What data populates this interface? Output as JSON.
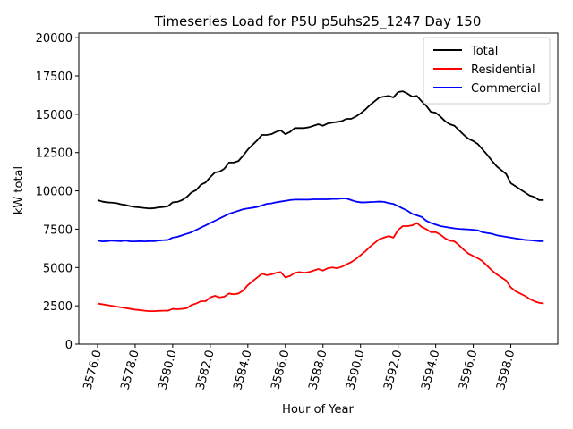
{
  "chart_data": {
    "type": "line",
    "title": "Timeseries Load for P5U p5uhs25_1247  Day 150",
    "xlabel": "Hour of Year",
    "ylabel": "kW total",
    "xlim": [
      3575.0,
      3600.5
    ],
    "ylim": [
      0,
      20300
    ],
    "xticks": [
      3576,
      3578,
      3580,
      3582,
      3584,
      3586,
      3588,
      3590,
      3592,
      3594,
      3596,
      3598
    ],
    "xtick_labels": [
      "3576.0",
      "3578.0",
      "3580.0",
      "3582.0",
      "3584.0",
      "3586.0",
      "3588.0",
      "3590.0",
      "3592.0",
      "3594.0",
      "3596.0",
      "3598.0"
    ],
    "yticks": [
      0,
      2500,
      5000,
      7500,
      10000,
      12500,
      15000,
      17500,
      20000
    ],
    "ytick_labels": [
      "0",
      "2500",
      "5000",
      "7500",
      "10000",
      "12500",
      "15000",
      "17500",
      "20000"
    ],
    "legend_position": "top-right",
    "x": [
      3576.0,
      3576.25,
      3576.5,
      3576.75,
      3577.0,
      3577.25,
      3577.5,
      3577.75,
      3578.0,
      3578.25,
      3578.5,
      3578.75,
      3579.0,
      3579.25,
      3579.5,
      3579.75,
      3580.0,
      3580.25,
      3580.5,
      3580.75,
      3581.0,
      3581.25,
      3581.5,
      3581.75,
      3582.0,
      3582.25,
      3582.5,
      3582.75,
      3583.0,
      3583.25,
      3583.5,
      3583.75,
      3584.0,
      3584.25,
      3584.5,
      3584.75,
      3585.0,
      3585.25,
      3585.5,
      3585.75,
      3586.0,
      3586.25,
      3586.5,
      3586.75,
      3587.0,
      3587.25,
      3587.5,
      3587.75,
      3588.0,
      3588.25,
      3588.5,
      3588.75,
      3589.0,
      3589.25,
      3589.5,
      3589.75,
      3590.0,
      3590.25,
      3590.5,
      3590.75,
      3591.0,
      3591.25,
      3591.5,
      3591.75,
      3592.0,
      3592.25,
      3592.5,
      3592.75,
      3593.0,
      3593.25,
      3593.5,
      3593.75,
      3594.0,
      3594.25,
      3594.5,
      3594.75,
      3595.0,
      3595.25,
      3595.5,
      3595.75,
      3596.0,
      3596.25,
      3596.5,
      3596.75,
      3597.0,
      3597.25,
      3597.5,
      3597.75,
      3598.0,
      3598.25,
      3598.5,
      3598.75,
      3599.0,
      3599.25,
      3599.5,
      3599.75
    ],
    "series": [
      {
        "name": "Total",
        "color": "#000000",
        "values": [
          9400,
          9300,
          9250,
          9230,
          9200,
          9120,
          9080,
          9000,
          8950,
          8920,
          8880,
          8850,
          8870,
          8920,
          8950,
          9000,
          9250,
          9280,
          9400,
          9600,
          9900,
          10050,
          10400,
          10550,
          10900,
          11200,
          11250,
          11450,
          11850,
          11850,
          11950,
          12300,
          12700,
          13000,
          13300,
          13650,
          13650,
          13700,
          13850,
          13950,
          13700,
          13850,
          14100,
          14100,
          14100,
          14150,
          14250,
          14350,
          14250,
          14400,
          14450,
          14500,
          14550,
          14700,
          14700,
          14850,
          15050,
          15300,
          15600,
          15850,
          16100,
          16150,
          16200,
          16100,
          16450,
          16500,
          16350,
          16150,
          16200,
          15850,
          15550,
          15150,
          15100,
          14850,
          14550,
          14350,
          14250,
          13950,
          13650,
          13400,
          13250,
          13050,
          12700,
          12350,
          11950,
          11600,
          11350,
          11100,
          10500,
          10300,
          10100,
          9900,
          9700,
          9600,
          9400,
          9400
        ]
      },
      {
        "name": "Residential",
        "color": "#ff0000",
        "values": [
          2650,
          2600,
          2550,
          2500,
          2450,
          2400,
          2350,
          2300,
          2250,
          2220,
          2180,
          2150,
          2150,
          2170,
          2180,
          2180,
          2300,
          2280,
          2300,
          2350,
          2550,
          2650,
          2800,
          2800,
          3050,
          3150,
          3050,
          3100,
          3300,
          3250,
          3300,
          3500,
          3850,
          4100,
          4350,
          4600,
          4500,
          4550,
          4650,
          4700,
          4350,
          4450,
          4650,
          4700,
          4650,
          4700,
          4800,
          4900,
          4800,
          4950,
          5000,
          4950,
          5050,
          5200,
          5350,
          5550,
          5800,
          6050,
          6350,
          6600,
          6850,
          6950,
          7050,
          6950,
          7450,
          7700,
          7700,
          7750,
          7900,
          7650,
          7500,
          7300,
          7300,
          7150,
          6900,
          6750,
          6700,
          6450,
          6150,
          5900,
          5750,
          5600,
          5400,
          5100,
          4800,
          4550,
          4350,
          4150,
          3700,
          3450,
          3300,
          3150,
          2950,
          2800,
          2700,
          2650
        ]
      },
      {
        "name": "Commercial",
        "color": "#0000ff",
        "values": [
          6750,
          6700,
          6720,
          6750,
          6730,
          6720,
          6750,
          6700,
          6700,
          6720,
          6700,
          6720,
          6720,
          6750,
          6780,
          6800,
          6950,
          7000,
          7100,
          7200,
          7300,
          7450,
          7600,
          7750,
          7900,
          8050,
          8200,
          8350,
          8500,
          8600,
          8700,
          8800,
          8850,
          8900,
          8950,
          9050,
          9150,
          9180,
          9250,
          9300,
          9350,
          9400,
          9430,
          9430,
          9430,
          9430,
          9450,
          9450,
          9450,
          9450,
          9470,
          9470,
          9500,
          9500,
          9400,
          9300,
          9250,
          9250,
          9270,
          9280,
          9300,
          9280,
          9200,
          9150,
          9000,
          8850,
          8700,
          8500,
          8400,
          8300,
          8050,
          7900,
          7800,
          7700,
          7650,
          7600,
          7550,
          7520,
          7500,
          7480,
          7460,
          7420,
          7300,
          7250,
          7200,
          7100,
          7050,
          7000,
          6950,
          6900,
          6850,
          6800,
          6780,
          6750,
          6720,
          6720
        ]
      }
    ]
  }
}
